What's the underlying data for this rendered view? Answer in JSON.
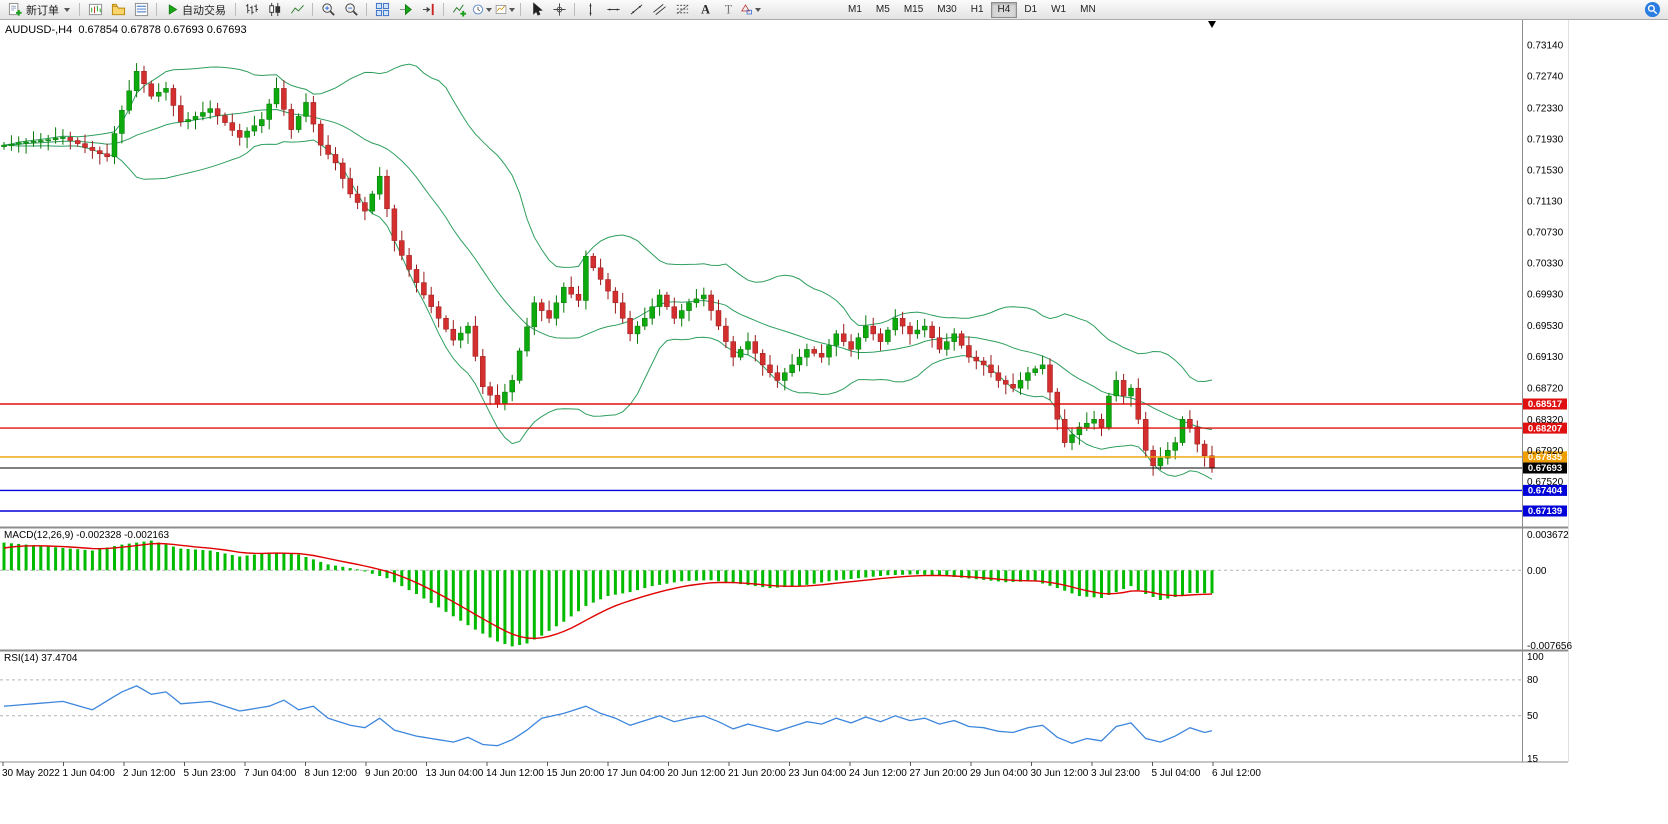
{
  "toolbar": {
    "new_order_label": "新订单",
    "auto_trading_label": "自动交易",
    "timeframes": [
      "M1",
      "M5",
      "M15",
      "M30",
      "H1",
      "H4",
      "D1",
      "W1",
      "MN"
    ],
    "active_timeframe": "H4"
  },
  "header": {
    "symbol_ohlc": "AUDUSD-,H4  0.67854 0.67878 0.67693 0.67693"
  },
  "indicators": {
    "macd_label": "MACD(12,26,9) -0.002328 -0.002163",
    "rsi_label": "RSI(14) 37.4704"
  },
  "chart_data": [
    {
      "type": "candlestick",
      "title": "AUDUSD-,H4",
      "symbol": "AUDUSD-",
      "timeframe": "H4",
      "ohlc_current": {
        "open": 0.67854,
        "high": 0.67878,
        "low": 0.67693,
        "close": 0.67693
      },
      "first_open": 0.7183,
      "closes": [
        0.7185,
        0.7186,
        0.7188,
        0.7189,
        0.719,
        0.7191,
        0.7192,
        0.7194,
        0.7195,
        0.7191,
        0.7187,
        0.7182,
        0.7178,
        0.7174,
        0.717,
        0.72,
        0.723,
        0.7255,
        0.728,
        0.7264,
        0.7248,
        0.7253,
        0.7258,
        0.7236,
        0.7215,
        0.7218,
        0.7222,
        0.7227,
        0.7232,
        0.7223,
        0.7214,
        0.7204,
        0.7195,
        0.7203,
        0.721,
        0.7218,
        0.7238,
        0.7258,
        0.7231,
        0.7205,
        0.7222,
        0.724,
        0.7212,
        0.7185,
        0.7173,
        0.7162,
        0.7142,
        0.7122,
        0.7111,
        0.71,
        0.7122,
        0.7145,
        0.7103,
        0.7062,
        0.7043,
        0.7025,
        0.7008,
        0.6992,
        0.6977,
        0.6962,
        0.6948,
        0.6934,
        0.6943,
        0.6952,
        0.6913,
        0.6874,
        0.6863,
        0.6852,
        0.6867,
        0.6882,
        0.692,
        0.6951,
        0.6982,
        0.6972,
        0.6962,
        0.6982,
        0.7002,
        0.6993,
        0.6985,
        0.7042,
        0.7027,
        0.7012,
        0.6997,
        0.6982,
        0.6962,
        0.6942,
        0.6952,
        0.6962,
        0.6977,
        0.6992,
        0.6977,
        0.6962,
        0.6972,
        0.6982,
        0.6987,
        0.6992,
        0.6972,
        0.6952,
        0.6932,
        0.6912,
        0.6922,
        0.6932,
        0.6917,
        0.6902,
        0.6892,
        0.6882,
        0.6892,
        0.6902,
        0.6912,
        0.6922,
        0.6917,
        0.6912,
        0.6927,
        0.6942,
        0.6932,
        0.6922,
        0.6937,
        0.6952,
        0.6942,
        0.6932,
        0.6947,
        0.6962,
        0.6952,
        0.6942,
        0.6947,
        0.6952,
        0.6937,
        0.6922,
        0.6932,
        0.6942,
        0.6927,
        0.6912,
        0.6907,
        0.6902,
        0.6892,
        0.6882,
        0.6877,
        0.6872,
        0.6882,
        0.6892,
        0.6897,
        0.6902,
        0.6867,
        0.6832,
        0.6802,
        0.6812,
        0.6822,
        0.6827,
        0.6832,
        0.6822,
        0.6862,
        0.6882,
        0.6862,
        0.6872,
        0.6832,
        0.6792,
        0.6772,
        0.6782,
        0.6792,
        0.6802,
        0.6832,
        0.6822,
        0.68,
        0.6785,
        0.67693
      ],
      "price_axis_labels": [
        "0.73140",
        "0.72740",
        "0.72330",
        "0.71930",
        "0.71530",
        "0.71130",
        "0.70730",
        "0.70330",
        "0.69930",
        "0.69530",
        "0.69130",
        "0.68720",
        "0.68320",
        "0.67920",
        "0.67520"
      ],
      "price_range": {
        "top": 0.73461,
        "bottom": 0.66933
      },
      "time_labels": [
        "30 May 2022",
        "1 Jun 04:00",
        "2 Jun 12:00",
        "5 Jun 23:00",
        "7 Jun 04:00",
        "8 Jun 12:00",
        "9 Jun 20:00",
        "13 Jun 04:00",
        "14 Jun 12:00",
        "15 Jun 20:00",
        "17 Jun 04:00",
        "20 Jun 12:00",
        "21 Jun 20:00",
        "23 Jun 04:00",
        "24 Jun 12:00",
        "27 Jun 20:00",
        "29 Jun 04:00",
        "30 Jun 12:00",
        "3 Jul 23:00",
        "5 Jul 04:00",
        "6 Jul 12:00"
      ],
      "levels": [
        {
          "price": 0.68517,
          "label": "0.68517",
          "color": "#e01010",
          "style": "solid"
        },
        {
          "price": 0.68207,
          "label": "0.68207",
          "color": "#e01010",
          "style": "solid"
        },
        {
          "price": 0.67835,
          "label": "0.67835",
          "color": "#efa000",
          "style": "solid"
        },
        {
          "price": 0.67693,
          "label": "0.67693",
          "color": "#000000",
          "style": "solid",
          "role": "current-price"
        },
        {
          "price": 0.67404,
          "label": "0.67404",
          "color": "#0000d8",
          "style": "solid"
        },
        {
          "price": 0.67139,
          "label": "0.67139",
          "color": "#0000d8",
          "style": "solid"
        }
      ],
      "bollinger": {
        "period": 20,
        "deviation": 2,
        "color": "#2e9e5e"
      },
      "colors": {
        "up": "#0caa0c",
        "up_border": "#067806",
        "down": "#d32f2f",
        "down_border": "#991a1a"
      }
    },
    {
      "type": "bar",
      "title": "MACD(12,26,9)",
      "values": [
        -0.002328,
        -0.002163
      ],
      "keypoints": [
        [
          0,
          0.0028
        ],
        [
          6,
          0.0024
        ],
        [
          12,
          0.002
        ],
        [
          16,
          0.0026
        ],
        [
          20,
          0.003
        ],
        [
          24,
          0.0022
        ],
        [
          28,
          0.002
        ],
        [
          32,
          0.0014
        ],
        [
          36,
          0.0018
        ],
        [
          40,
          0.0016
        ],
        [
          44,
          0.0006
        ],
        [
          48,
          0.0001
        ],
        [
          52,
          -0.0008
        ],
        [
          56,
          -0.0024
        ],
        [
          60,
          -0.0042
        ],
        [
          64,
          -0.006
        ],
        [
          67,
          -0.0072
        ],
        [
          69,
          -0.0077
        ],
        [
          71,
          -0.0074
        ],
        [
          73,
          -0.0066
        ],
        [
          76,
          -0.0052
        ],
        [
          79,
          -0.0036
        ],
        [
          82,
          -0.0026
        ],
        [
          85,
          -0.0022
        ],
        [
          88,
          -0.0016
        ],
        [
          92,
          -0.0011
        ],
        [
          96,
          -0.001
        ],
        [
          100,
          -0.0014
        ],
        [
          104,
          -0.0018
        ],
        [
          108,
          -0.0016
        ],
        [
          112,
          -0.0011
        ],
        [
          116,
          -0.0008
        ],
        [
          120,
          -0.0005
        ],
        [
          124,
          -0.0004
        ],
        [
          128,
          -0.0006
        ],
        [
          132,
          -0.0009
        ],
        [
          136,
          -0.0012
        ],
        [
          140,
          -0.0011
        ],
        [
          143,
          -0.0018
        ],
        [
          146,
          -0.0026
        ],
        [
          149,
          -0.0028
        ],
        [
          151,
          -0.0022
        ],
        [
          153,
          -0.0016
        ],
        [
          155,
          -0.0024
        ],
        [
          157,
          -0.003
        ],
        [
          159,
          -0.0027
        ],
        [
          161,
          -0.0023
        ],
        [
          164,
          -0.002328
        ]
      ],
      "axis_labels": {
        "max": "0.003672",
        "zero": "0.00",
        "min": "-0.007656"
      },
      "range": {
        "max": 0.003672,
        "min": -0.007656
      },
      "colors": {
        "histogram": "#00bb00",
        "signal": "#e00000"
      }
    },
    {
      "type": "line",
      "title": "RSI(14)",
      "current": 37.4704,
      "keypoints": [
        [
          0,
          58
        ],
        [
          4,
          60
        ],
        [
          8,
          62
        ],
        [
          12,
          55
        ],
        [
          16,
          70
        ],
        [
          18,
          75
        ],
        [
          20,
          68
        ],
        [
          22,
          70
        ],
        [
          24,
          60
        ],
        [
          28,
          62
        ],
        [
          32,
          54
        ],
        [
          36,
          58
        ],
        [
          38,
          63
        ],
        [
          40,
          55
        ],
        [
          42,
          58
        ],
        [
          44,
          48
        ],
        [
          47,
          42
        ],
        [
          49,
          40
        ],
        [
          51,
          48
        ],
        [
          53,
          38
        ],
        [
          56,
          33
        ],
        [
          59,
          30
        ],
        [
          61,
          28
        ],
        [
          63,
          32
        ],
        [
          65,
          26
        ],
        [
          67,
          25
        ],
        [
          69,
          30
        ],
        [
          71,
          38
        ],
        [
          73,
          48
        ],
        [
          76,
          52
        ],
        [
          79,
          58
        ],
        [
          81,
          52
        ],
        [
          83,
          48
        ],
        [
          85,
          42
        ],
        [
          87,
          46
        ],
        [
          89,
          50
        ],
        [
          91,
          45
        ],
        [
          93,
          48
        ],
        [
          95,
          50
        ],
        [
          97,
          45
        ],
        [
          99,
          39
        ],
        [
          101,
          43
        ],
        [
          103,
          40
        ],
        [
          105,
          37
        ],
        [
          107,
          41
        ],
        [
          109,
          45
        ],
        [
          111,
          43
        ],
        [
          113,
          48
        ],
        [
          115,
          44
        ],
        [
          117,
          49
        ],
        [
          119,
          45
        ],
        [
          121,
          50
        ],
        [
          123,
          46
        ],
        [
          125,
          48
        ],
        [
          127,
          43
        ],
        [
          129,
          46
        ],
        [
          131,
          41
        ],
        [
          133,
          40
        ],
        [
          135,
          37
        ],
        [
          137,
          36
        ],
        [
          139,
          40
        ],
        [
          141,
          42
        ],
        [
          143,
          32
        ],
        [
          145,
          27
        ],
        [
          147,
          31
        ],
        [
          149,
          29
        ],
        [
          151,
          41
        ],
        [
          153,
          44
        ],
        [
          155,
          31
        ],
        [
          157,
          28
        ],
        [
          159,
          33
        ],
        [
          161,
          40
        ],
        [
          163,
          36
        ],
        [
          164,
          37.47
        ]
      ],
      "axis_labels": [
        "100",
        "80",
        "50",
        "15"
      ],
      "levels": [
        80,
        50
      ],
      "range": {
        "max": 100,
        "min": 13
      },
      "color": "#3d86dd"
    }
  ]
}
